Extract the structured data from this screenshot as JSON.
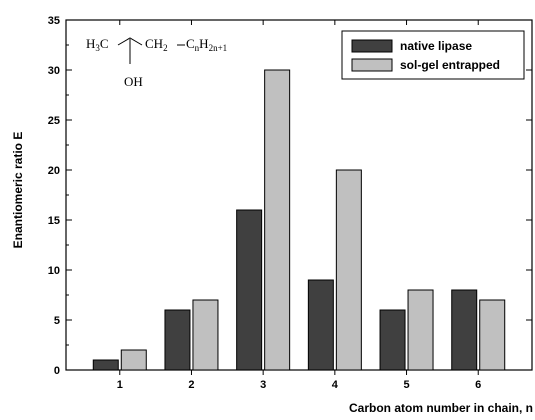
{
  "chart_data": {
    "type": "bar",
    "xlabel": "Carbon atom number in chain, n",
    "ylabel": "Enantiomeric ratio E",
    "ylim": [
      0,
      35
    ],
    "yticks": [
      0,
      5,
      10,
      15,
      20,
      25,
      30,
      35
    ],
    "categories": [
      "1",
      "2",
      "3",
      "4",
      "5",
      "6"
    ],
    "series": [
      {
        "name": "native lipase",
        "values": [
          1,
          6,
          16,
          9,
          6,
          8
        ],
        "color": "#404040"
      },
      {
        "name": "sol-gel entrapped",
        "values": [
          2,
          7,
          30,
          20,
          8,
          7
        ],
        "color": "#c0c0c0"
      }
    ],
    "legend_position": "top-right",
    "grid": false,
    "annotation": {
      "h3c": "H",
      "h3c_sub": "3",
      "h3c_tail": "C",
      "ch2": "CH",
      "ch2_sub": "2",
      "c": "C",
      "c_sub": "n",
      "h": "H",
      "h_sub": "2n+1",
      "oh": "OH"
    }
  }
}
